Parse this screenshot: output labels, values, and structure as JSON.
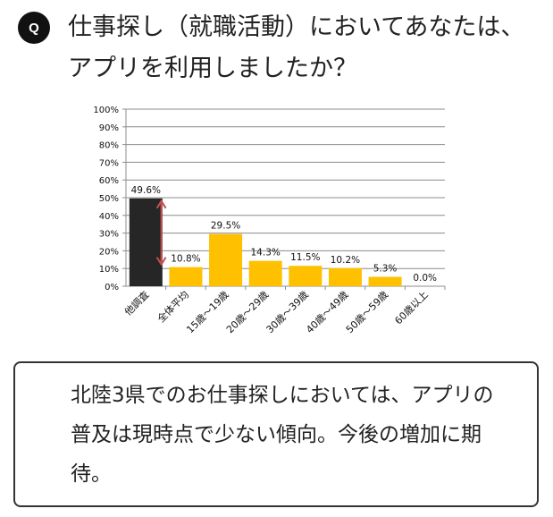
{
  "question": {
    "badge": "Q",
    "text": "仕事探し（就職活動）においてあなたは、アプリを利用しましたか？"
  },
  "chart_data": {
    "type": "bar",
    "title": "",
    "xlabel": "",
    "ylabel": "",
    "ylim": [
      0,
      100
    ],
    "y_ticks": [
      "0%",
      "10%",
      "20%",
      "30%",
      "40%",
      "50%",
      "60%",
      "70%",
      "80%",
      "90%",
      "100%"
    ],
    "categories": [
      "他調査",
      "全体平均",
      "15歳～19歳",
      "20歳～29歳",
      "30歳～39歳",
      "40歳～49歳",
      "50歳～59歳",
      "60歳以上"
    ],
    "values": [
      49.6,
      10.8,
      29.5,
      14.3,
      11.5,
      10.2,
      5.3,
      0.0
    ],
    "labels": [
      "49.6%",
      "10.8%",
      "29.5%",
      "14.3%",
      "11.5%",
      "10.2%",
      "5.3%",
      "0.0%"
    ],
    "colors": [
      "#262626",
      "#FFC000",
      "#FFC000",
      "#FFC000",
      "#FFC000",
      "#FFC000",
      "#FFC000",
      "#FFC000"
    ],
    "annotation": "double-headed arrow comparing 他調査 and 全体平均",
    "annotation_color": "#C0504D",
    "grid": true
  },
  "comment": {
    "text": "北陸3県でのお仕事探しにおいては、アプリの普及は現時点で少ない傾向。今後の増加に期待。"
  }
}
